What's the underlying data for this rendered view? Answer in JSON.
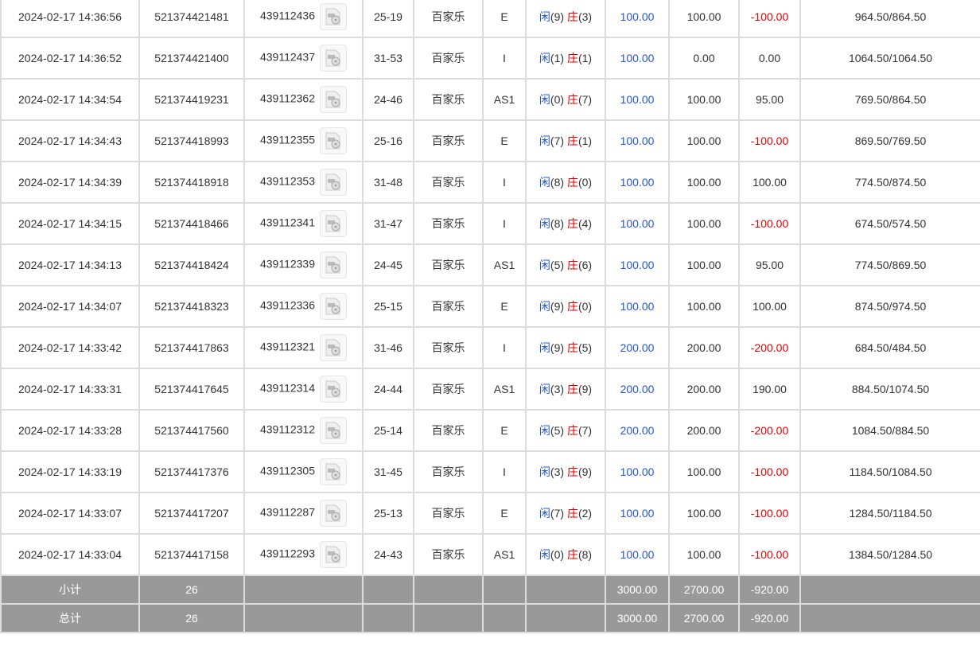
{
  "colors": {
    "player": "#2255dd",
    "banker": "#e00000",
    "footer_bg": "#999999"
  },
  "labels": {
    "player": "闲",
    "banker": "庄"
  },
  "rows": [
    {
      "time": "2024-02-17 14:36:56",
      "order": "521374421481",
      "round": "439112436",
      "table": "25-19",
      "game": "百家乐",
      "code": "E",
      "p": "(9)",
      "b": "(3)",
      "bet": "100.00",
      "valid": "100.00",
      "win": "-100.00",
      "bal": "964.50/864.50"
    },
    {
      "time": "2024-02-17 14:36:52",
      "order": "521374421400",
      "round": "439112437",
      "table": "31-53",
      "game": "百家乐",
      "code": "I",
      "p": "(1)",
      "b": "(1)",
      "bet": "100.00",
      "valid": "0.00",
      "win": "0.00",
      "bal": "1064.50/1064.50"
    },
    {
      "time": "2024-02-17 14:34:54",
      "order": "521374419231",
      "round": "439112362",
      "table": "24-46",
      "game": "百家乐",
      "code": "AS1",
      "p": "(0)",
      "b": "(7)",
      "bet": "100.00",
      "valid": "100.00",
      "win": "95.00",
      "bal": "769.50/864.50"
    },
    {
      "time": "2024-02-17 14:34:43",
      "order": "521374418993",
      "round": "439112355",
      "table": "25-16",
      "game": "百家乐",
      "code": "E",
      "p": "(7)",
      "b": "(1)",
      "bet": "100.00",
      "valid": "100.00",
      "win": "-100.00",
      "bal": "869.50/769.50"
    },
    {
      "time": "2024-02-17 14:34:39",
      "order": "521374418918",
      "round": "439112353",
      "table": "31-48",
      "game": "百家乐",
      "code": "I",
      "p": "(8)",
      "b": "(0)",
      "bet": "100.00",
      "valid": "100.00",
      "win": "100.00",
      "bal": "774.50/874.50"
    },
    {
      "time": "2024-02-17 14:34:15",
      "order": "521374418466",
      "round": "439112341",
      "table": "31-47",
      "game": "百家乐",
      "code": "I",
      "p": "(8)",
      "b": "(4)",
      "bet": "100.00",
      "valid": "100.00",
      "win": "-100.00",
      "bal": "674.50/574.50"
    },
    {
      "time": "2024-02-17 14:34:13",
      "order": "521374418424",
      "round": "439112339",
      "table": "24-45",
      "game": "百家乐",
      "code": "AS1",
      "p": "(5)",
      "b": "(6)",
      "bet": "100.00",
      "valid": "100.00",
      "win": "95.00",
      "bal": "774.50/869.50"
    },
    {
      "time": "2024-02-17 14:34:07",
      "order": "521374418323",
      "round": "439112336",
      "table": "25-15",
      "game": "百家乐",
      "code": "E",
      "p": "(9)",
      "b": "(0)",
      "bet": "100.00",
      "valid": "100.00",
      "win": "100.00",
      "bal": "874.50/974.50"
    },
    {
      "time": "2024-02-17 14:33:42",
      "order": "521374417863",
      "round": "439112321",
      "table": "31-46",
      "game": "百家乐",
      "code": "I",
      "p": "(9)",
      "b": "(5)",
      "bet": "200.00",
      "valid": "200.00",
      "win": "-200.00",
      "bal": "684.50/484.50"
    },
    {
      "time": "2024-02-17 14:33:31",
      "order": "521374417645",
      "round": "439112314",
      "table": "24-44",
      "game": "百家乐",
      "code": "AS1",
      "p": "(3)",
      "b": "(9)",
      "bet": "200.00",
      "valid": "200.00",
      "win": "190.00",
      "bal": "884.50/1074.50"
    },
    {
      "time": "2024-02-17 14:33:28",
      "order": "521374417560",
      "round": "439112312",
      "table": "25-14",
      "game": "百家乐",
      "code": "E",
      "p": "(5)",
      "b": "(7)",
      "bet": "200.00",
      "valid": "200.00",
      "win": "-200.00",
      "bal": "1084.50/884.50"
    },
    {
      "time": "2024-02-17 14:33:19",
      "order": "521374417376",
      "round": "439112305",
      "table": "31-45",
      "game": "百家乐",
      "code": "I",
      "p": "(3)",
      "b": "(9)",
      "bet": "100.00",
      "valid": "100.00",
      "win": "-100.00",
      "bal": "1184.50/1084.50"
    },
    {
      "time": "2024-02-17 14:33:07",
      "order": "521374417207",
      "round": "439112287",
      "table": "25-13",
      "game": "百家乐",
      "code": "E",
      "p": "(7)",
      "b": "(2)",
      "bet": "100.00",
      "valid": "100.00",
      "win": "-100.00",
      "bal": "1284.50/1184.50"
    },
    {
      "time": "2024-02-17 14:33:04",
      "order": "521374417158",
      "round": "439112293",
      "table": "24-43",
      "game": "百家乐",
      "code": "AS1",
      "p": "(0)",
      "b": "(8)",
      "bet": "100.00",
      "valid": "100.00",
      "win": "-100.00",
      "bal": "1384.50/1284.50"
    }
  ],
  "footer": [
    {
      "label": "小计",
      "count": "26",
      "bet": "3000.00",
      "valid": "2700.00",
      "win": "-920.00"
    },
    {
      "label": "总计",
      "count": "26",
      "bet": "3000.00",
      "valid": "2700.00",
      "win": "-920.00"
    }
  ]
}
